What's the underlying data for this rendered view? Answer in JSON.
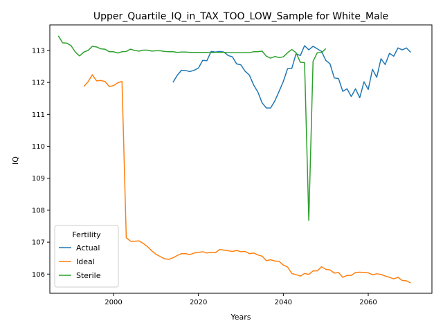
{
  "chart_data": {
    "type": "line",
    "title": "Upper_Quartile_IQ_in_TAX_TOO_LOW_Sample for White_Male",
    "xlabel": "Years",
    "ylabel": "IQ",
    "xlim": [
      1985,
      2075
    ],
    "ylim": [
      105.4,
      113.8
    ],
    "xticks": [
      2000,
      2020,
      2040,
      2060
    ],
    "yticks": [
      106,
      107,
      108,
      109,
      110,
      111,
      112,
      113
    ],
    "grid": false,
    "legend": {
      "title": "Fertility",
      "placement": "lower-left"
    },
    "colors": {
      "Actual": "#1f77b4",
      "Ideal": "#ff7f0e",
      "Sterile": "#2ca02c"
    },
    "series": [
      {
        "name": "Actual",
        "x": [
          2014,
          2015,
          2016,
          2017,
          2018,
          2019,
          2020,
          2021,
          2022,
          2023,
          2024,
          2025,
          2026,
          2027,
          2028,
          2029,
          2030,
          2031,
          2032,
          2033,
          2034,
          2035,
          2036,
          2037,
          2038,
          2039,
          2040,
          2041,
          2042,
          2043,
          2044,
          2045,
          2046,
          2047,
          2048,
          2049,
          2050,
          2051,
          2052,
          2053,
          2054,
          2055,
          2056,
          2057,
          2058,
          2059,
          2060,
          2061,
          2062,
          2063,
          2064,
          2065,
          2066,
          2067,
          2068,
          2069,
          2070
        ],
        "y": [
          112.0,
          112.22,
          112.38,
          112.37,
          112.34,
          112.38,
          112.45,
          112.69,
          112.68,
          112.97,
          112.95,
          112.97,
          112.95,
          112.84,
          112.8,
          112.58,
          112.55,
          112.35,
          112.23,
          111.92,
          111.7,
          111.36,
          111.2,
          111.2,
          111.42,
          111.72,
          112.03,
          112.43,
          112.44,
          112.9,
          112.84,
          113.15,
          113.02,
          113.13,
          113.05,
          112.97,
          112.69,
          112.58,
          112.14,
          112.12,
          111.72,
          111.8,
          111.56,
          111.8,
          111.52,
          112.02,
          111.78,
          112.41,
          112.16,
          112.74,
          112.56,
          112.91,
          112.82,
          113.08,
          113.02,
          113.08,
          112.94
        ]
      },
      {
        "name": "Ideal",
        "x": [
          1993,
          1994,
          1995,
          1996,
          1997,
          1998,
          1999,
          2000,
          2001,
          2002,
          2003,
          2004,
          2005,
          2006,
          2007,
          2008,
          2009,
          2010,
          2011,
          2012,
          2013,
          2014,
          2015,
          2016,
          2017,
          2018,
          2019,
          2020,
          2021,
          2022,
          2023,
          2024,
          2025,
          2026,
          2027,
          2028,
          2029,
          2030,
          2031,
          2032,
          2033,
          2034,
          2035,
          2036,
          2037,
          2038,
          2039,
          2040,
          2041,
          2042,
          2043,
          2044,
          2045,
          2046,
          2047,
          2048,
          2049,
          2050,
          2051,
          2052,
          2053,
          2054,
          2055,
          2056,
          2057,
          2058,
          2059,
          2060,
          2061,
          2062,
          2063,
          2064,
          2065,
          2066,
          2067,
          2068,
          2069,
          2070
        ],
        "y": [
          111.87,
          112.02,
          112.24,
          112.05,
          112.06,
          112.03,
          111.87,
          111.9,
          111.99,
          112.03,
          107.14,
          107.03,
          107.03,
          107.04,
          106.96,
          106.86,
          106.73,
          106.62,
          106.55,
          106.48,
          106.46,
          106.51,
          106.58,
          106.64,
          106.64,
          106.61,
          106.66,
          106.68,
          106.7,
          106.66,
          106.68,
          106.67,
          106.77,
          106.75,
          106.73,
          106.71,
          106.74,
          106.7,
          106.71,
          106.64,
          106.66,
          106.6,
          106.56,
          106.42,
          106.45,
          106.41,
          106.4,
          106.28,
          106.22,
          106.02,
          105.98,
          105.94,
          106.02,
          105.99,
          106.1,
          106.1,
          106.23,
          106.15,
          106.13,
          106.03,
          106.05,
          105.9,
          105.96,
          105.96,
          106.05,
          106.06,
          106.05,
          106.04,
          105.98,
          106.01,
          105.99,
          105.94,
          105.9,
          105.85,
          105.9,
          105.8,
          105.79,
          105.72
        ]
      },
      {
        "name": "Sterile",
        "x": [
          1987,
          1988,
          1989,
          1990,
          1991,
          1992,
          1993,
          1994,
          1995,
          1996,
          1997,
          1998,
          1999,
          2000,
          2001,
          2002,
          2003,
          2004,
          2005,
          2006,
          2007,
          2008,
          2009,
          2010,
          2011,
          2012,
          2013,
          2014,
          2015,
          2016,
          2017,
          2018,
          2019,
          2020,
          2021,
          2022,
          2023,
          2024,
          2025,
          2026,
          2027,
          2028,
          2029,
          2030,
          2031,
          2032,
          2033,
          2034,
          2035,
          2036,
          2037,
          2038,
          2039,
          2040,
          2041,
          2042,
          2043,
          2044,
          2045,
          2046,
          2047,
          2048,
          2049,
          2050
        ],
        "y": [
          113.46,
          113.24,
          113.23,
          113.15,
          112.95,
          112.83,
          112.95,
          113.0,
          113.13,
          113.11,
          113.05,
          113.04,
          112.96,
          112.96,
          112.92,
          112.96,
          112.97,
          113.04,
          113.0,
          112.98,
          113.01,
          113.01,
          112.98,
          112.99,
          112.99,
          112.97,
          112.96,
          112.96,
          112.94,
          112.95,
          112.95,
          112.94,
          112.94,
          112.94,
          112.94,
          112.94,
          112.93,
          112.94,
          112.94,
          112.94,
          112.93,
          112.93,
          112.93,
          112.93,
          112.93,
          112.93,
          112.96,
          112.96,
          112.98,
          112.82,
          112.76,
          112.81,
          112.78,
          112.8,
          112.93,
          113.03,
          112.93,
          112.63,
          112.62,
          107.68,
          112.66,
          112.93,
          112.93,
          113.06
        ]
      }
    ]
  }
}
